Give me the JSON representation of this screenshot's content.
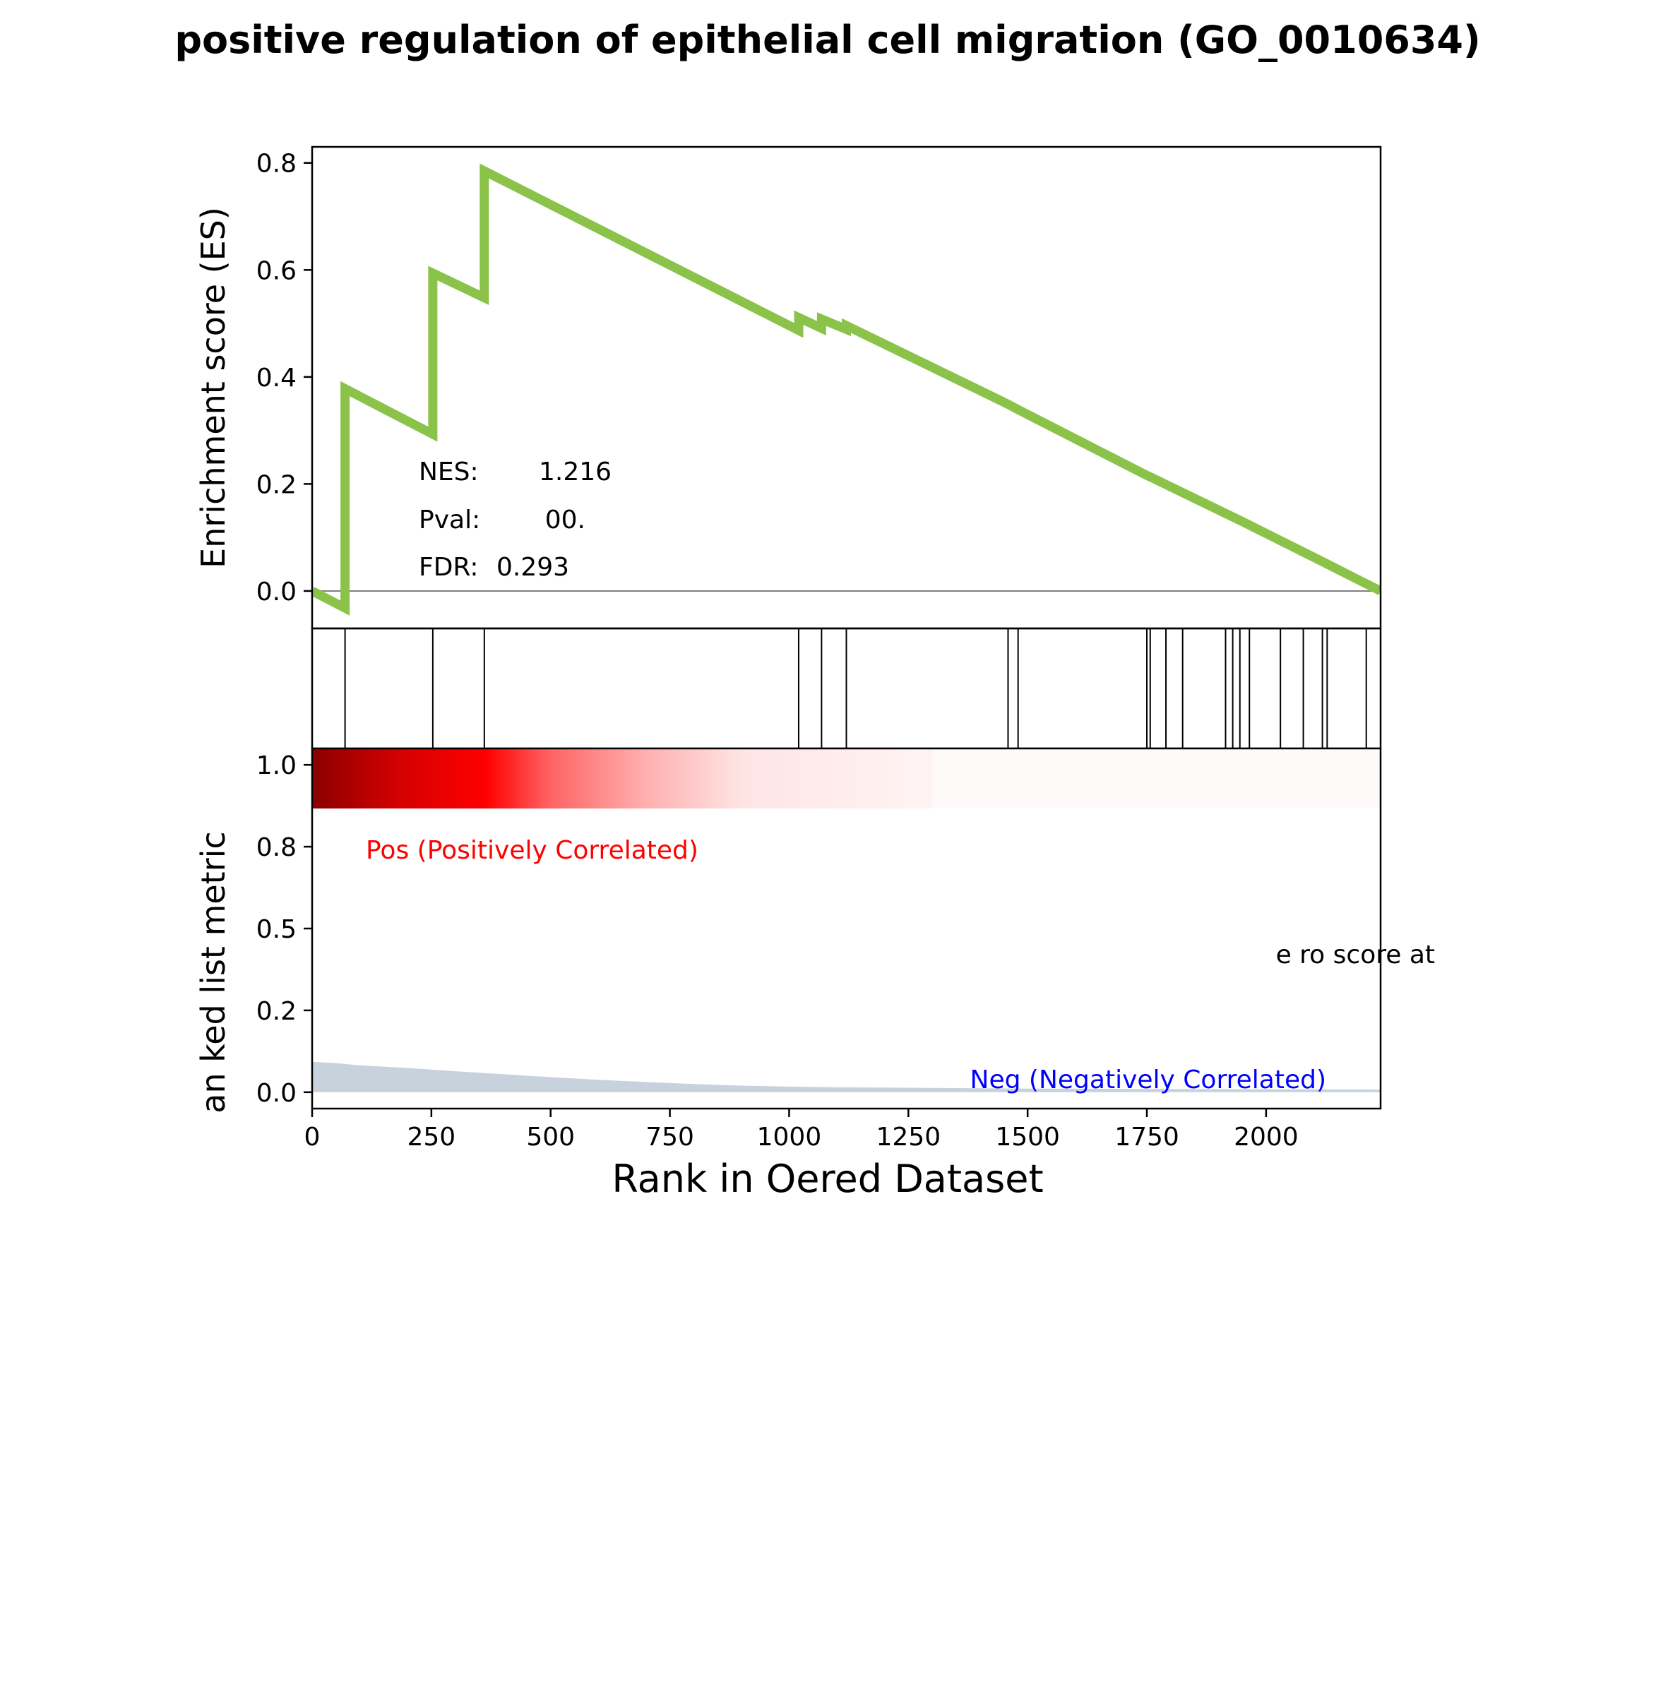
{
  "chart_data": {
    "type": "line",
    "title": "positive regulation of epithelial cell migration (GO_0010634)",
    "es_panel": {
      "ylabel": "Enrichment score (ES)",
      "ylim": [
        -0.07,
        0.83
      ],
      "yticks": [
        0.0,
        0.2,
        0.4,
        0.6,
        0.8
      ],
      "ytick_labels": [
        "0.0",
        "0.2",
        "0.4",
        "0.6",
        "0.8"
      ],
      "line_color": "#8bc34a",
      "zero_line": true,
      "series": [
        {
          "x": [
            0,
            69,
            69,
            253,
            253,
            361,
            361,
            1020,
            1020,
            1068,
            1068,
            1120,
            1120,
            1459,
            1480,
            1750,
            1760,
            1915,
            1945,
            2120,
            2240
          ],
          "y": [
            0.0,
            -0.032,
            0.378,
            0.293,
            0.594,
            0.548,
            0.785,
            0.487,
            0.511,
            0.491,
            0.508,
            0.489,
            0.496,
            0.349,
            0.339,
            0.216,
            0.212,
            0.145,
            0.132,
            0.054,
            0.0
          ]
        }
      ],
      "stats": [
        {
          "label": "NES:",
          "value": "1.216"
        },
        {
          "label": "Pval:",
          "value": "00."
        },
        {
          "label": "FDR:",
          "value": "0.293"
        }
      ]
    },
    "hits": [
      69,
      253,
      361,
      1020,
      1068,
      1120,
      1459,
      1480,
      1750,
      1757,
      1790,
      1825,
      1915,
      1930,
      1945,
      1965,
      2030,
      2078,
      2118,
      2128,
      2210,
      2240
    ],
    "heatmap": {
      "gradient_end_rank": 1300,
      "stops": [
        {
          "rank": 0,
          "color": "#8b0000"
        },
        {
          "rank": 180,
          "color": "#d40000"
        },
        {
          "rank": 365,
          "color": "#ff0000"
        },
        {
          "rank": 500,
          "color": "#ff6464"
        },
        {
          "rank": 700,
          "color": "#ffb0b0"
        },
        {
          "rank": 900,
          "color": "#ffe4e4"
        },
        {
          "rank": 1300,
          "color": "#fff4f4"
        }
      ]
    },
    "metric_panel": {
      "ylabel": "an ked list metric",
      "ylim": [
        -0.05,
        1.05
      ],
      "yticks": [
        0.0,
        0.25,
        0.5,
        0.75,
        1.0
      ],
      "ytick_labels": [
        "0.0",
        "0.2",
        "0.5",
        "0.8",
        "1.0"
      ],
      "fill_color": "#c8d2dc",
      "x": [
        0,
        50,
        100,
        200,
        300,
        400,
        500,
        600,
        700,
        800,
        900,
        1000,
        1100,
        1200,
        1300,
        1400,
        1500,
        1750,
        2000,
        2240
      ],
      "y": [
        0.093,
        0.089,
        0.082,
        0.074,
        0.064,
        0.055,
        0.046,
        0.038,
        0.031,
        0.025,
        0.02,
        0.017,
        0.015,
        0.014,
        0.013,
        0.012,
        0.011,
        0.01,
        0.009,
        0.008
      ],
      "pos_label": "Pos (Positively Correlated)",
      "pos_color": "#ff0000",
      "neg_label": "Neg (Negatively Correlated)",
      "neg_color": "#0000ff",
      "zero_cross_label": "e ro  score at"
    },
    "xlabel": "Rank in  Oered Dataset",
    "xlim": [
      0,
      2240
    ],
    "xticks": [
      0,
      250,
      500,
      750,
      1000,
      1250,
      1500,
      1750,
      2000
    ],
    "xtick_labels": [
      "0",
      "250",
      "500",
      "750",
      "1000",
      "1250",
      "1500",
      "1750",
      "2000"
    ]
  }
}
